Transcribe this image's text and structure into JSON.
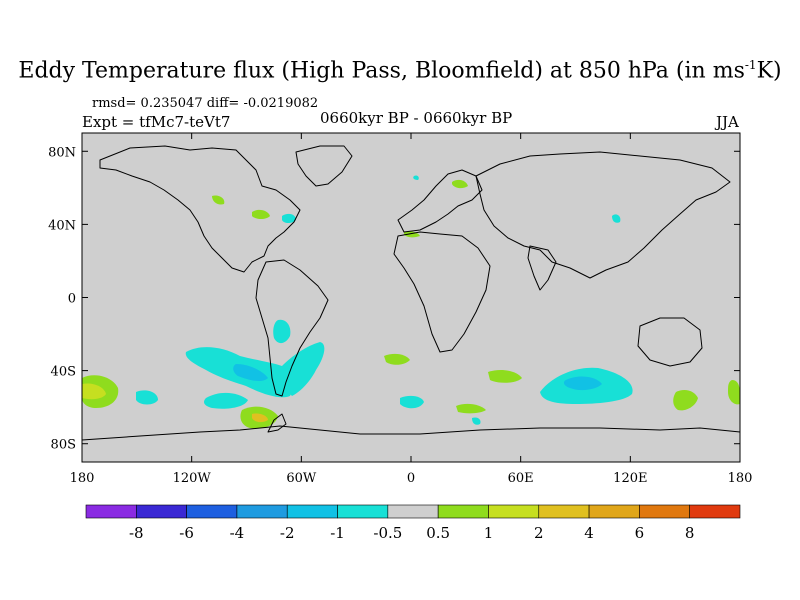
{
  "title": {
    "prefix": "Eddy Temperature flux (High Pass, Bloomfield) at 850 hPa (in ms",
    "exponent": "-1",
    "suffix": "K)"
  },
  "stats_line": "rmsd= 0.235047 diff= -0.0219082",
  "experiment": "Expt = tfMc7-teVt7",
  "period": "0660kyr BP - 0660kyr BP",
  "season": "JJA",
  "map": {
    "projection": "cylindrical equidistant",
    "lon_range": [
      -180,
      180
    ],
    "lat_range": [
      -90,
      90
    ],
    "x_tick_labels": [
      "180",
      "120W",
      "60W",
      "0",
      "60E",
      "120E",
      "180"
    ],
    "y_tick_labels": [
      "80N",
      "40N",
      "0",
      "40S",
      "80S"
    ],
    "background_color": "#cfcfcf",
    "coastline_color": "#000000"
  },
  "colorbar": {
    "labels": [
      "-8",
      "-6",
      "-4",
      "-2",
      "-1",
      "-0.5",
      "0.5",
      "1",
      "2",
      "4",
      "6",
      "8"
    ],
    "colors": [
      "#8a2be2",
      "#3a28d4",
      "#1e5fe0",
      "#1f9be0",
      "#11c1e5",
      "#18e0d6",
      "#cfcfcf",
      "#8fdc1e",
      "#c6df20",
      "#e0c020",
      "#e0a61a",
      "#e0780f",
      "#e03a0f"
    ]
  }
}
